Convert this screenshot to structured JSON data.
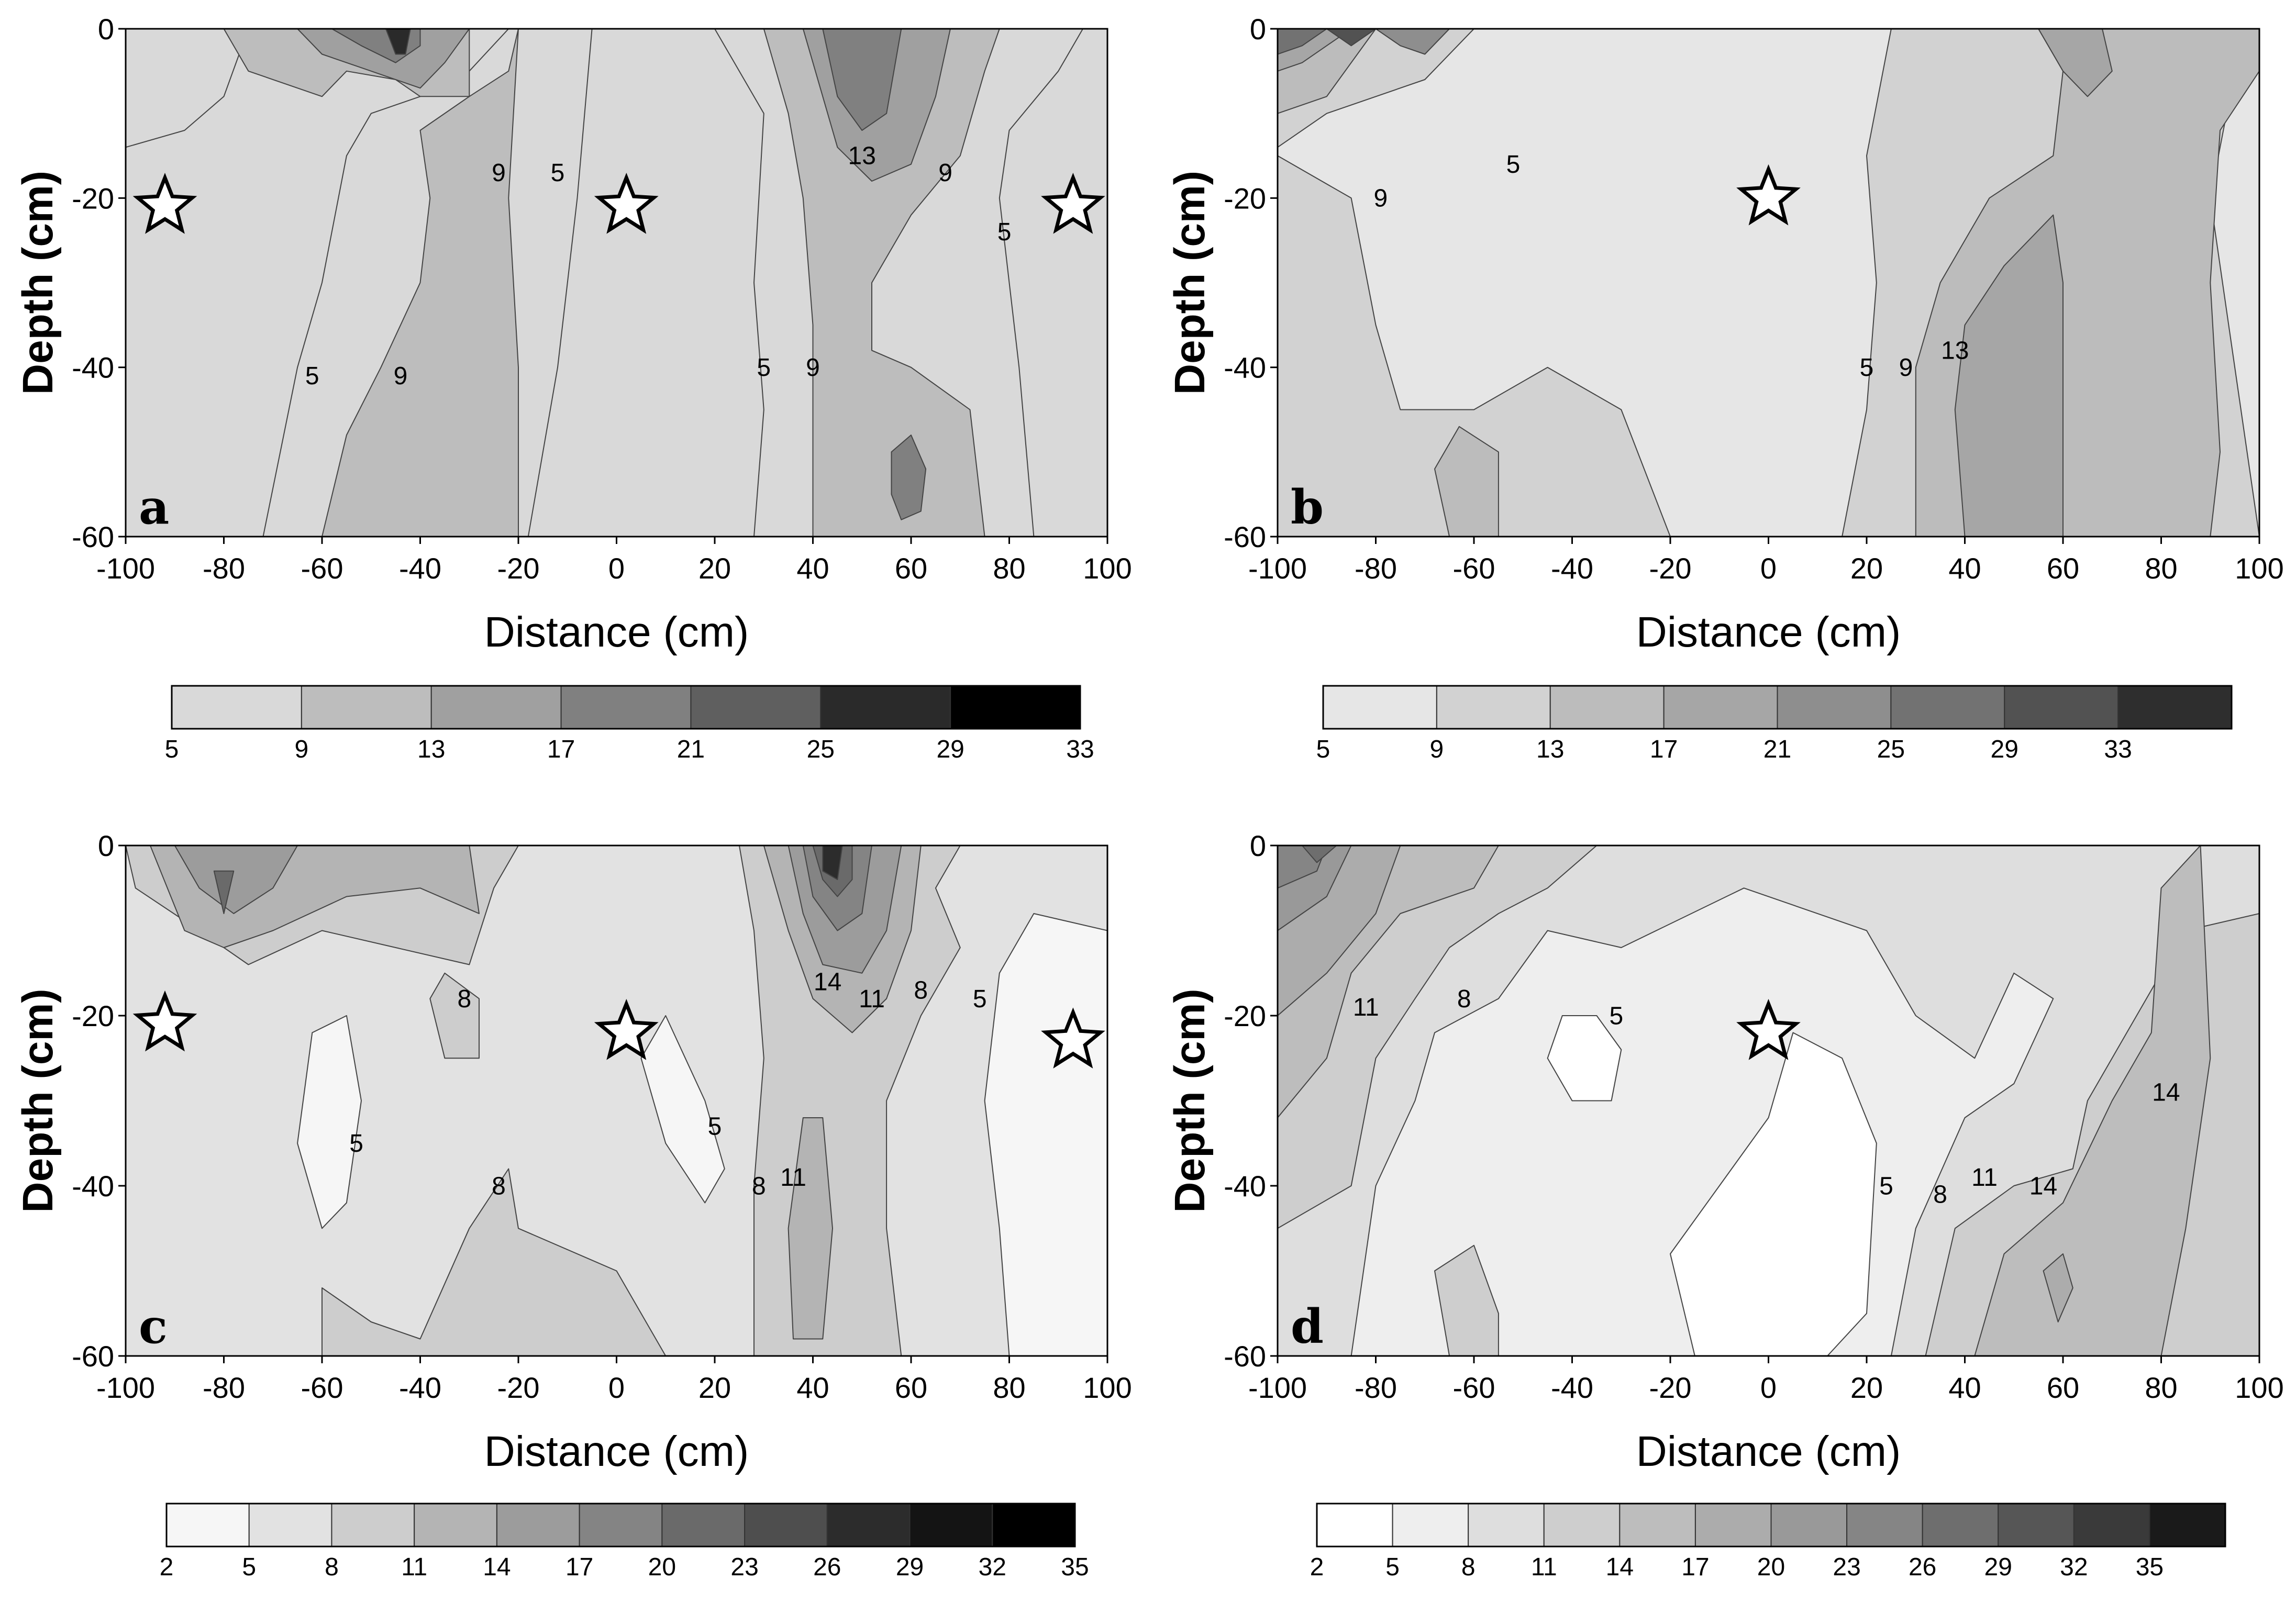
{
  "figure": {
    "xlabel": "Distance (cm)",
    "ylabel": "Depth (cm)"
  },
  "chart_data": [
    {
      "type": "heatmap",
      "panel": "a",
      "xlabel": "Distance (cm)",
      "ylabel": "Depth (cm)",
      "xlim": [
        -100,
        100
      ],
      "ylim": [
        -60,
        0
      ],
      "xticks": [
        -100,
        -80,
        -60,
        -40,
        -20,
        0,
        20,
        40,
        60,
        80,
        100
      ],
      "yticks": [
        0,
        -20,
        -40,
        -60
      ],
      "levels": [
        5,
        9,
        13,
        17,
        21,
        25,
        29,
        33
      ],
      "level_colors": [
        "#d9d9d9",
        "#bdbdbd",
        "#a0a0a0",
        "#808080",
        "#5f5f5f",
        "#2a2a2a",
        "#000000"
      ],
      "contour_labels": [
        {
          "text": "5",
          "x": -62,
          "y": -42
        },
        {
          "text": "9",
          "x": -44,
          "y": -42
        },
        {
          "text": "9",
          "x": -24,
          "y": -18
        },
        {
          "text": "5",
          "x": -12,
          "y": -18
        },
        {
          "text": "13",
          "x": 50,
          "y": -16
        },
        {
          "text": "9",
          "x": 67,
          "y": -18
        },
        {
          "text": "5",
          "x": 79,
          "y": -25
        },
        {
          "text": "5",
          "x": 30,
          "y": -41
        },
        {
          "text": "9",
          "x": 40,
          "y": -41
        }
      ],
      "markers": [
        {
          "symbol": "star",
          "x": -92,
          "y": -21
        },
        {
          "symbol": "star",
          "x": 2,
          "y": -21
        },
        {
          "symbol": "star",
          "x": 93,
          "y": -21
        }
      ],
      "colorbar": {
        "ticks": [
          "5",
          "9",
          "13",
          "17",
          "21",
          "25",
          "29",
          "33"
        ]
      }
    },
    {
      "type": "heatmap",
      "panel": "b",
      "xlabel": "Distance (cm)",
      "ylabel": "Depth (cm)",
      "xlim": [
        -100,
        100
      ],
      "ylim": [
        -60,
        0
      ],
      "xticks": [
        -100,
        -80,
        -60,
        -40,
        -20,
        0,
        20,
        40,
        60,
        80,
        100
      ],
      "yticks": [
        0,
        -20,
        -40,
        -60
      ],
      "levels": [
        5,
        9,
        13,
        17,
        21,
        25,
        29,
        33
      ],
      "level_colors": [
        "#e6e6e6",
        "#d2d2d2",
        "#bcbcbc",
        "#a6a6a6",
        "#8e8e8e",
        "#727272",
        "#525252",
        "#2e2e2e"
      ],
      "contour_labels": [
        {
          "text": "9",
          "x": -79,
          "y": -21
        },
        {
          "text": "5",
          "x": -52,
          "y": -17
        },
        {
          "text": "5",
          "x": 20,
          "y": -41
        },
        {
          "text": "9",
          "x": 28,
          "y": -41
        },
        {
          "text": "13",
          "x": 38,
          "y": -39
        }
      ],
      "markers": [
        {
          "symbol": "star",
          "x": 0,
          "y": -20
        }
      ],
      "colorbar": {
        "ticks": [
          "5",
          "9",
          "13",
          "17",
          "21",
          "25",
          "29",
          "33"
        ]
      }
    },
    {
      "type": "heatmap",
      "panel": "c",
      "xlabel": "Distance (cm)",
      "ylabel": "Depth (cm)",
      "xlim": [
        -100,
        100
      ],
      "ylim": [
        -60,
        0
      ],
      "xticks": [
        -100,
        -80,
        -60,
        -40,
        -20,
        0,
        20,
        40,
        60,
        80,
        100
      ],
      "yticks": [
        0,
        -20,
        -40,
        -60
      ],
      "levels": [
        2,
        5,
        8,
        11,
        14,
        17,
        20,
        23,
        26,
        29,
        32,
        35
      ],
      "level_colors": [
        "#f6f6f6",
        "#e2e2e2",
        "#cdcdcd",
        "#b4b4b4",
        "#9c9c9c",
        "#848484",
        "#6a6a6a",
        "#4e4e4e",
        "#2c2c2c",
        "#141414",
        "#000000"
      ],
      "contour_labels": [
        {
          "text": "5",
          "x": -53,
          "y": -36
        },
        {
          "text": "8",
          "x": -31,
          "y": -19
        },
        {
          "text": "8",
          "x": -24,
          "y": -41
        },
        {
          "text": "5",
          "x": 20,
          "y": -34
        },
        {
          "text": "8",
          "x": 29,
          "y": -41
        },
        {
          "text": "11",
          "x": 36,
          "y": -40
        },
        {
          "text": "14",
          "x": 43,
          "y": -17
        },
        {
          "text": "11",
          "x": 52,
          "y": -19
        },
        {
          "text": "8",
          "x": 62,
          "y": -18
        },
        {
          "text": "5",
          "x": 74,
          "y": -19
        }
      ],
      "markers": [
        {
          "symbol": "star",
          "x": -92,
          "y": -21
        },
        {
          "symbol": "star",
          "x": 2,
          "y": -22
        },
        {
          "symbol": "star",
          "x": 93,
          "y": -23
        }
      ],
      "colorbar": {
        "ticks": [
          "2",
          "5",
          "8",
          "11",
          "14",
          "17",
          "20",
          "23",
          "26",
          "29",
          "32",
          "35"
        ]
      }
    },
    {
      "type": "heatmap",
      "panel": "d",
      "xlabel": "Distance (cm)",
      "ylabel": "Depth (cm)",
      "xlim": [
        -100,
        100
      ],
      "ylim": [
        -60,
        0
      ],
      "xticks": [
        -100,
        -80,
        -60,
        -40,
        -20,
        0,
        20,
        40,
        60,
        80,
        100
      ],
      "yticks": [
        0,
        -20,
        -40,
        -60
      ],
      "levels": [
        2,
        5,
        8,
        11,
        14,
        17,
        20,
        23,
        26,
        29,
        32,
        35
      ],
      "level_colors": [
        "#ffffff",
        "#eeeeee",
        "#dedede",
        "#cecece",
        "#bdbdbd",
        "#acacac",
        "#999999",
        "#858585",
        "#6e6e6e",
        "#565656",
        "#3a3a3a",
        "#1a1a1a"
      ],
      "contour_labels": [
        {
          "text": "11",
          "x": -82,
          "y": -20
        },
        {
          "text": "8",
          "x": -62,
          "y": -19
        },
        {
          "text": "5",
          "x": -31,
          "y": -21
        },
        {
          "text": "5",
          "x": 24,
          "y": -41
        },
        {
          "text": "8",
          "x": 35,
          "y": -42
        },
        {
          "text": "11",
          "x": 44,
          "y": -40
        },
        {
          "text": "14",
          "x": 56,
          "y": -41
        },
        {
          "text": "14",
          "x": 81,
          "y": -30
        }
      ],
      "markers": [
        {
          "symbol": "star",
          "x": 0,
          "y": -22
        }
      ],
      "colorbar": {
        "ticks": [
          "2",
          "5",
          "8",
          "11",
          "14",
          "17",
          "20",
          "23",
          "26",
          "29",
          "32",
          "35"
        ]
      }
    }
  ]
}
